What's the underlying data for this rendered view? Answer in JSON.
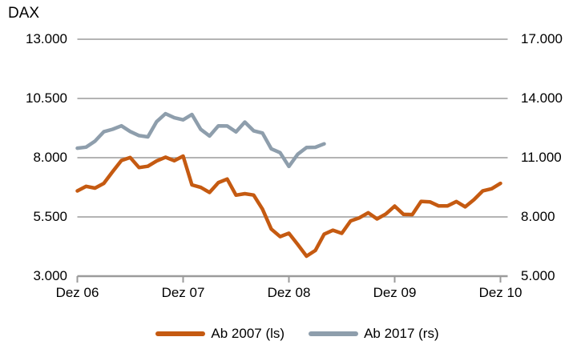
{
  "title": "DAX",
  "colors": {
    "series_ab2007": "#C55A11",
    "series_ab2017": "#8E9EAC",
    "grid": "#9B9B9B",
    "axis": "#9B9B9B",
    "text": "#000000",
    "background": "#FFFFFF"
  },
  "axes": {
    "left": {
      "labels": [
        "13.000",
        "10.500",
        "8.000",
        "5.500",
        "3.000"
      ]
    },
    "right": {
      "labels": [
        "17.000",
        "14.000",
        "11.000",
        "8.000",
        "5.000"
      ]
    },
    "x": {
      "labels": [
        "Dez 06",
        "Dez 07",
        "Dez 08",
        "Dez 09",
        "Dez 10"
      ]
    }
  },
  "legend": {
    "items": [
      {
        "label": "Ab 2007 (ls)",
        "color": "#C55A11"
      },
      {
        "label": "Ab 2017 (rs)",
        "color": "#8E9EAC"
      }
    ]
  },
  "chart_data": {
    "type": "line",
    "title": "DAX",
    "x_tick_labels": [
      "Dez 06",
      "Dez 07",
      "Dez 08",
      "Dez 09",
      "Dez 10"
    ],
    "points_per_tick_interval": 12,
    "grid": "horizontal",
    "legend_position": "bottom",
    "left_axis": {
      "range": [
        3000,
        13000
      ],
      "ticks": [
        13000,
        10500,
        8000,
        5500,
        3000
      ]
    },
    "right_axis": {
      "range": [
        5000,
        17000
      ],
      "ticks": [
        17000,
        14000,
        11000,
        8000,
        5000
      ]
    },
    "series": [
      {
        "name": "Ab 2007 (ls)",
        "axis": "left",
        "color": "#C55A11",
        "x_start_index": 0,
        "values": [
          6597,
          6789,
          6715,
          6917,
          7409,
          7883,
          8007,
          7584,
          7638,
          7861,
          8019,
          7870,
          8067,
          6851,
          6748,
          6535,
          6948,
          7097,
          6418,
          6480,
          6422,
          5831,
          4987,
          4669,
          4810,
          4338,
          3843,
          4085,
          4769,
          4940,
          4808,
          5332,
          5464,
          5675,
          5414,
          5625,
          5957,
          5609,
          5598,
          6154,
          6136,
          5964,
          5966,
          6148,
          5925,
          6229,
          6601,
          6688,
          6914
        ]
      },
      {
        "name": "Ab 2017 (rs)",
        "axis": "right",
        "color": "#8E9EAC",
        "x_start_index": 0,
        "values": [
          11481,
          11535,
          11834,
          12313,
          12438,
          12615,
          12325,
          12118,
          12056,
          12829,
          13230,
          13024,
          12918,
          13189,
          12436,
          12097,
          12612,
          12604,
          12306,
          12806,
          12364,
          12247,
          11448,
          11257,
          10559,
          11173,
          11516,
          11526,
          11700
        ]
      }
    ]
  }
}
